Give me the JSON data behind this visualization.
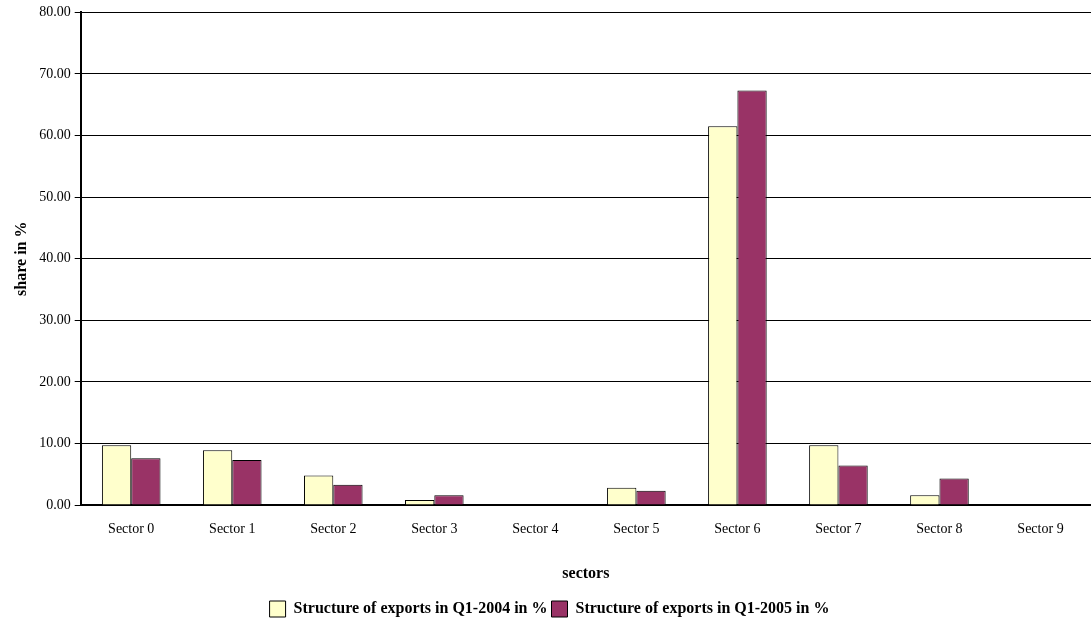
{
  "chart_data": {
    "type": "bar",
    "xlabel": "sectors",
    "ylabel": "share in %",
    "categories": [
      "Sector 0",
      "Sector 1",
      "Sector 2",
      "Sector 3",
      "Sector 4",
      "Sector 5",
      "Sector 6",
      "Sector 7",
      "Sector 8",
      "Sector 9"
    ],
    "series": [
      {
        "name": "Structure of exports in Q1-2004 in %",
        "color": "#ffffcc",
        "values": [
          9.7,
          8.9,
          4.8,
          0.8,
          0,
          2.8,
          61.5,
          9.7,
          1.6,
          0
        ]
      },
      {
        "name": "Structure of exports in Q1-2005 in %",
        "color": "#993366",
        "values": [
          7.6,
          7.3,
          3.3,
          1.6,
          0,
          2.3,
          67.3,
          6.4,
          4.3,
          0
        ]
      }
    ],
    "ylim": [
      0,
      80
    ],
    "yticks": [
      {
        "value": 0,
        "label": "0.00"
      },
      {
        "value": 10,
        "label": "10.00"
      },
      {
        "value": 20,
        "label": "20.00"
      },
      {
        "value": 30,
        "label": "30.00"
      },
      {
        "value": 40,
        "label": "40.00"
      },
      {
        "value": 50,
        "label": "50.00"
      },
      {
        "value": 60,
        "label": "60.00"
      },
      {
        "value": 70,
        "label": "70.00"
      },
      {
        "value": 80,
        "label": "80.00"
      }
    ],
    "grid": "y",
    "legend": "bottom"
  }
}
